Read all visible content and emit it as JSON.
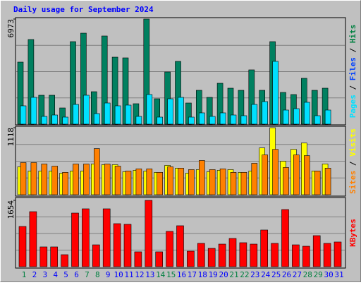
{
  "title": "Daily usage for September 2024",
  "categories": [
    "1",
    "2",
    "3",
    "4",
    "5",
    "6",
    "7",
    "8",
    "9",
    "10",
    "11",
    "12",
    "13",
    "14",
    "15",
    "16",
    "17",
    "18",
    "19",
    "20",
    "21",
    "22",
    "23",
    "24",
    "25",
    "26",
    "27",
    "28",
    "29",
    "30",
    "31"
  ],
  "category_colors": [
    "#008040",
    "#0000ff",
    "#0000ff",
    "#0000ff",
    "#0000ff",
    "#0000ff",
    "#008040",
    "#008040",
    "#0000ff",
    "#0000ff",
    "#0000ff",
    "#0000ff",
    "#0000ff",
    "#008040",
    "#008040",
    "#0000ff",
    "#0000ff",
    "#0000ff",
    "#0000ff",
    "#0000ff",
    "#008040",
    "#008040",
    "#0000ff",
    "#0000ff",
    "#0000ff",
    "#0000ff",
    "#0000ff",
    "#008040",
    "#008040",
    "#0000ff",
    "#0000ff"
  ],
  "chart_data": [
    {
      "type": "bar",
      "ylim": [
        0,
        6973
      ],
      "yticks": [
        6973
      ],
      "legend": [
        {
          "text": "Pages",
          "color": "#00e0ff"
        },
        {
          "text": " / ",
          "color": "#000000"
        },
        {
          "text": "Files",
          "color": "#0040ff"
        },
        {
          "text": " / ",
          "color": "#000000"
        },
        {
          "text": "Hits",
          "color": "#008040"
        }
      ],
      "series": [
        {
          "name": "Hits",
          "color": "#008060",
          "values": [
            4118,
            5616,
            1919,
            1919,
            1076,
            5475,
            6037,
            2153,
            5850,
            4446,
            4399,
            1357,
            6973,
            1685,
            3463,
            4165,
            1404,
            2246,
            1778,
            2714,
            2387,
            2246,
            3604,
            2246,
            5475,
            2106,
            1966,
            3042,
            2246,
            2387,
            null
          ]
        },
        {
          "name": "Pages",
          "color": "#00e0ff",
          "values": [
            1217,
            1778,
            515,
            608,
            468,
            1310,
            1919,
            702,
            1404,
            1217,
            1264,
            515,
            1966,
            468,
            1685,
            1778,
            468,
            749,
            515,
            749,
            608,
            562,
            1310,
            1498,
            4165,
            936,
            1030,
            1451,
            562,
            936,
            null
          ]
        }
      ]
    },
    {
      "type": "bar",
      "ylim": [
        0,
        1118
      ],
      "yticks": [
        1118
      ],
      "legend": [
        {
          "text": "Sites",
          "color": "#ff8000"
        },
        {
          "text": " / ",
          "color": "#000000"
        },
        {
          "text": "Visits",
          "color": "#ffff00"
        }
      ],
      "series": [
        {
          "name": "Visits",
          "color": "#ffff00",
          "values": [
            466,
            396,
            396,
            396,
            361,
            396,
            396,
            512,
            501,
            501,
            384,
            408,
            396,
            373,
            489,
            443,
            361,
            419,
            384,
            408,
            419,
            373,
            396,
            780,
            1118,
            559,
            757,
            862,
            396,
            512,
            null
          ]
        },
        {
          "name": "Sites",
          "color": "#ff8000",
          "values": [
            536,
            536,
            512,
            477,
            373,
            512,
            512,
            769,
            512,
            477,
            396,
            431,
            431,
            373,
            466,
            443,
            419,
            571,
            419,
            431,
            373,
            373,
            524,
            664,
            757,
            454,
            664,
            652,
            396,
            443,
            null
          ]
        }
      ]
    },
    {
      "type": "bar",
      "ylim": [
        0,
        1654
      ],
      "yticks": [
        1654
      ],
      "legend": [
        {
          "text": "KBytes",
          "color": "#ff0000"
        }
      ],
      "series": [
        {
          "name": "KBytes",
          "color": "#ff0000",
          "values": [
            1003,
            1372,
            493,
            493,
            299,
            1337,
            1443,
            545,
            1443,
            1073,
            1056,
            370,
            1654,
            370,
            880,
            1021,
            387,
            581,
            457,
            563,
            704,
            598,
            563,
            915,
            581,
            1425,
            545,
            510,
            774,
            581,
            616
          ]
        }
      ]
    }
  ]
}
